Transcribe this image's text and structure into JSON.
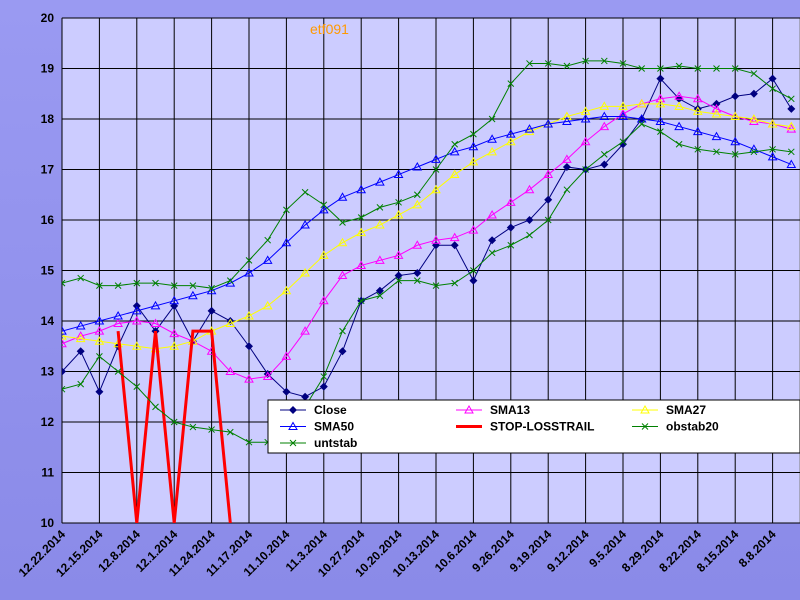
{
  "chart_data": {
    "type": "line",
    "title": "etf091",
    "categories": [
      "12.22.2014",
      null,
      "12.15.2014",
      null,
      "12.8.2014",
      null,
      "12.1.2014",
      null,
      "11.24.2014",
      null,
      "11.17.2014",
      null,
      "11.10.2014",
      null,
      "11.3.2014",
      null,
      "10.27.2014",
      null,
      "10.20.2014",
      null,
      "10.13.2014",
      null,
      "10.6.2014",
      null,
      "9.26.2014",
      null,
      "9.19.2014",
      null,
      "9.12.2014",
      null,
      "9.5.2014",
      null,
      "8.29.2014",
      null,
      "8.22.2014",
      null,
      "8.15.2014",
      null,
      "8.8.2014",
      null
    ],
    "ylim": [
      10,
      20
    ],
    "yticks": [
      10,
      11,
      12,
      13,
      14,
      15,
      16,
      17,
      18,
      19,
      20
    ],
    "grid": true,
    "series": [
      {
        "name": "Close",
        "color": "#000080",
        "marker": "diamond",
        "values": [
          13.0,
          13.4,
          12.6,
          13.5,
          14.3,
          13.8,
          14.3,
          13.6,
          14.2,
          14.0,
          13.5,
          12.95,
          12.6,
          12.5,
          12.7,
          13.4,
          14.4,
          14.6,
          14.9,
          14.95,
          15.5,
          15.5,
          14.8,
          15.6,
          15.85,
          16.0,
          16.4,
          17.05,
          17.0,
          17.1,
          17.5,
          18.0,
          18.8,
          18.4,
          18.2,
          18.3,
          18.45,
          18.5,
          18.8,
          18.2
        ]
      },
      {
        "name": "SMA13",
        "color": "#ff00ff",
        "marker": "triangle",
        "values": [
          13.55,
          13.7,
          13.8,
          13.95,
          14.0,
          13.95,
          13.75,
          13.6,
          13.4,
          13.0,
          12.85,
          12.9,
          13.3,
          13.8,
          14.4,
          14.9,
          15.1,
          15.2,
          15.3,
          15.5,
          15.6,
          15.65,
          15.8,
          16.1,
          16.35,
          16.6,
          16.9,
          17.2,
          17.55,
          17.85,
          18.1,
          18.3,
          18.4,
          18.45,
          18.4,
          18.2,
          18.05,
          17.95,
          17.9,
          17.8
        ]
      },
      {
        "name": "SMA27",
        "color": "#ffff00",
        "marker": "triangle",
        "values": [
          13.7,
          13.65,
          13.6,
          13.55,
          13.5,
          13.45,
          13.5,
          13.6,
          13.8,
          13.95,
          14.1,
          14.3,
          14.6,
          14.95,
          15.3,
          15.55,
          15.75,
          15.9,
          16.1,
          16.3,
          16.6,
          16.9,
          17.15,
          17.35,
          17.55,
          17.75,
          17.9,
          18.05,
          18.15,
          18.25,
          18.25,
          18.3,
          18.3,
          18.25,
          18.15,
          18.1,
          18.05,
          18.0,
          17.9,
          17.85
        ]
      },
      {
        "name": "SMA50",
        "color": "#0000ff",
        "marker": "triangle",
        "values": [
          13.8,
          13.9,
          14.0,
          14.1,
          14.2,
          14.3,
          14.4,
          14.5,
          14.6,
          14.75,
          14.95,
          15.2,
          15.55,
          15.9,
          16.2,
          16.45,
          16.6,
          16.75,
          16.9,
          17.05,
          17.2,
          17.35,
          17.45,
          17.6,
          17.7,
          17.8,
          17.9,
          17.95,
          18.0,
          18.05,
          18.05,
          18.0,
          17.95,
          17.85,
          17.75,
          17.65,
          17.55,
          17.4,
          17.25,
          17.1
        ]
      },
      {
        "name": "STOP-LOSSTRAIL",
        "color": "#ff0000",
        "marker": "none",
        "values": [
          null,
          null,
          null,
          13.8,
          10,
          13.8,
          10,
          13.8,
          13.8,
          10,
          null,
          null,
          null,
          null,
          null,
          null,
          null,
          null,
          null,
          null,
          null,
          null,
          null,
          null,
          null,
          null,
          null,
          null,
          null,
          null,
          null,
          null,
          null,
          null,
          null,
          null,
          null,
          null,
          null,
          null
        ]
      },
      {
        "name": "obstab20",
        "color": "#008000",
        "marker": "x",
        "values": [
          14.75,
          14.85,
          14.7,
          14.7,
          14.75,
          14.75,
          14.7,
          14.7,
          14.65,
          14.8,
          15.2,
          15.6,
          16.2,
          16.55,
          16.3,
          15.95,
          16.05,
          16.25,
          16.35,
          16.5,
          17.0,
          17.5,
          17.7,
          18.0,
          18.7,
          19.1,
          19.1,
          19.05,
          19.15,
          19.15,
          19.1,
          19.0,
          19.0,
          19.05,
          19.0,
          19.0,
          19.0,
          18.9,
          18.6,
          18.4
        ]
      },
      {
        "name": "untstab",
        "color": "#008000",
        "marker": "x",
        "values": [
          12.65,
          12.75,
          13.3,
          13.0,
          12.7,
          12.3,
          12.0,
          11.9,
          11.85,
          11.8,
          11.6,
          11.6,
          11.9,
          12.3,
          12.9,
          13.8,
          14.4,
          14.5,
          14.8,
          14.8,
          14.7,
          14.75,
          15.0,
          15.35,
          15.5,
          15.7,
          16.0,
          16.6,
          17.0,
          17.3,
          17.55,
          17.9,
          17.75,
          17.5,
          17.4,
          17.35,
          17.3,
          17.35,
          17.4,
          17.35
        ]
      }
    ]
  }
}
